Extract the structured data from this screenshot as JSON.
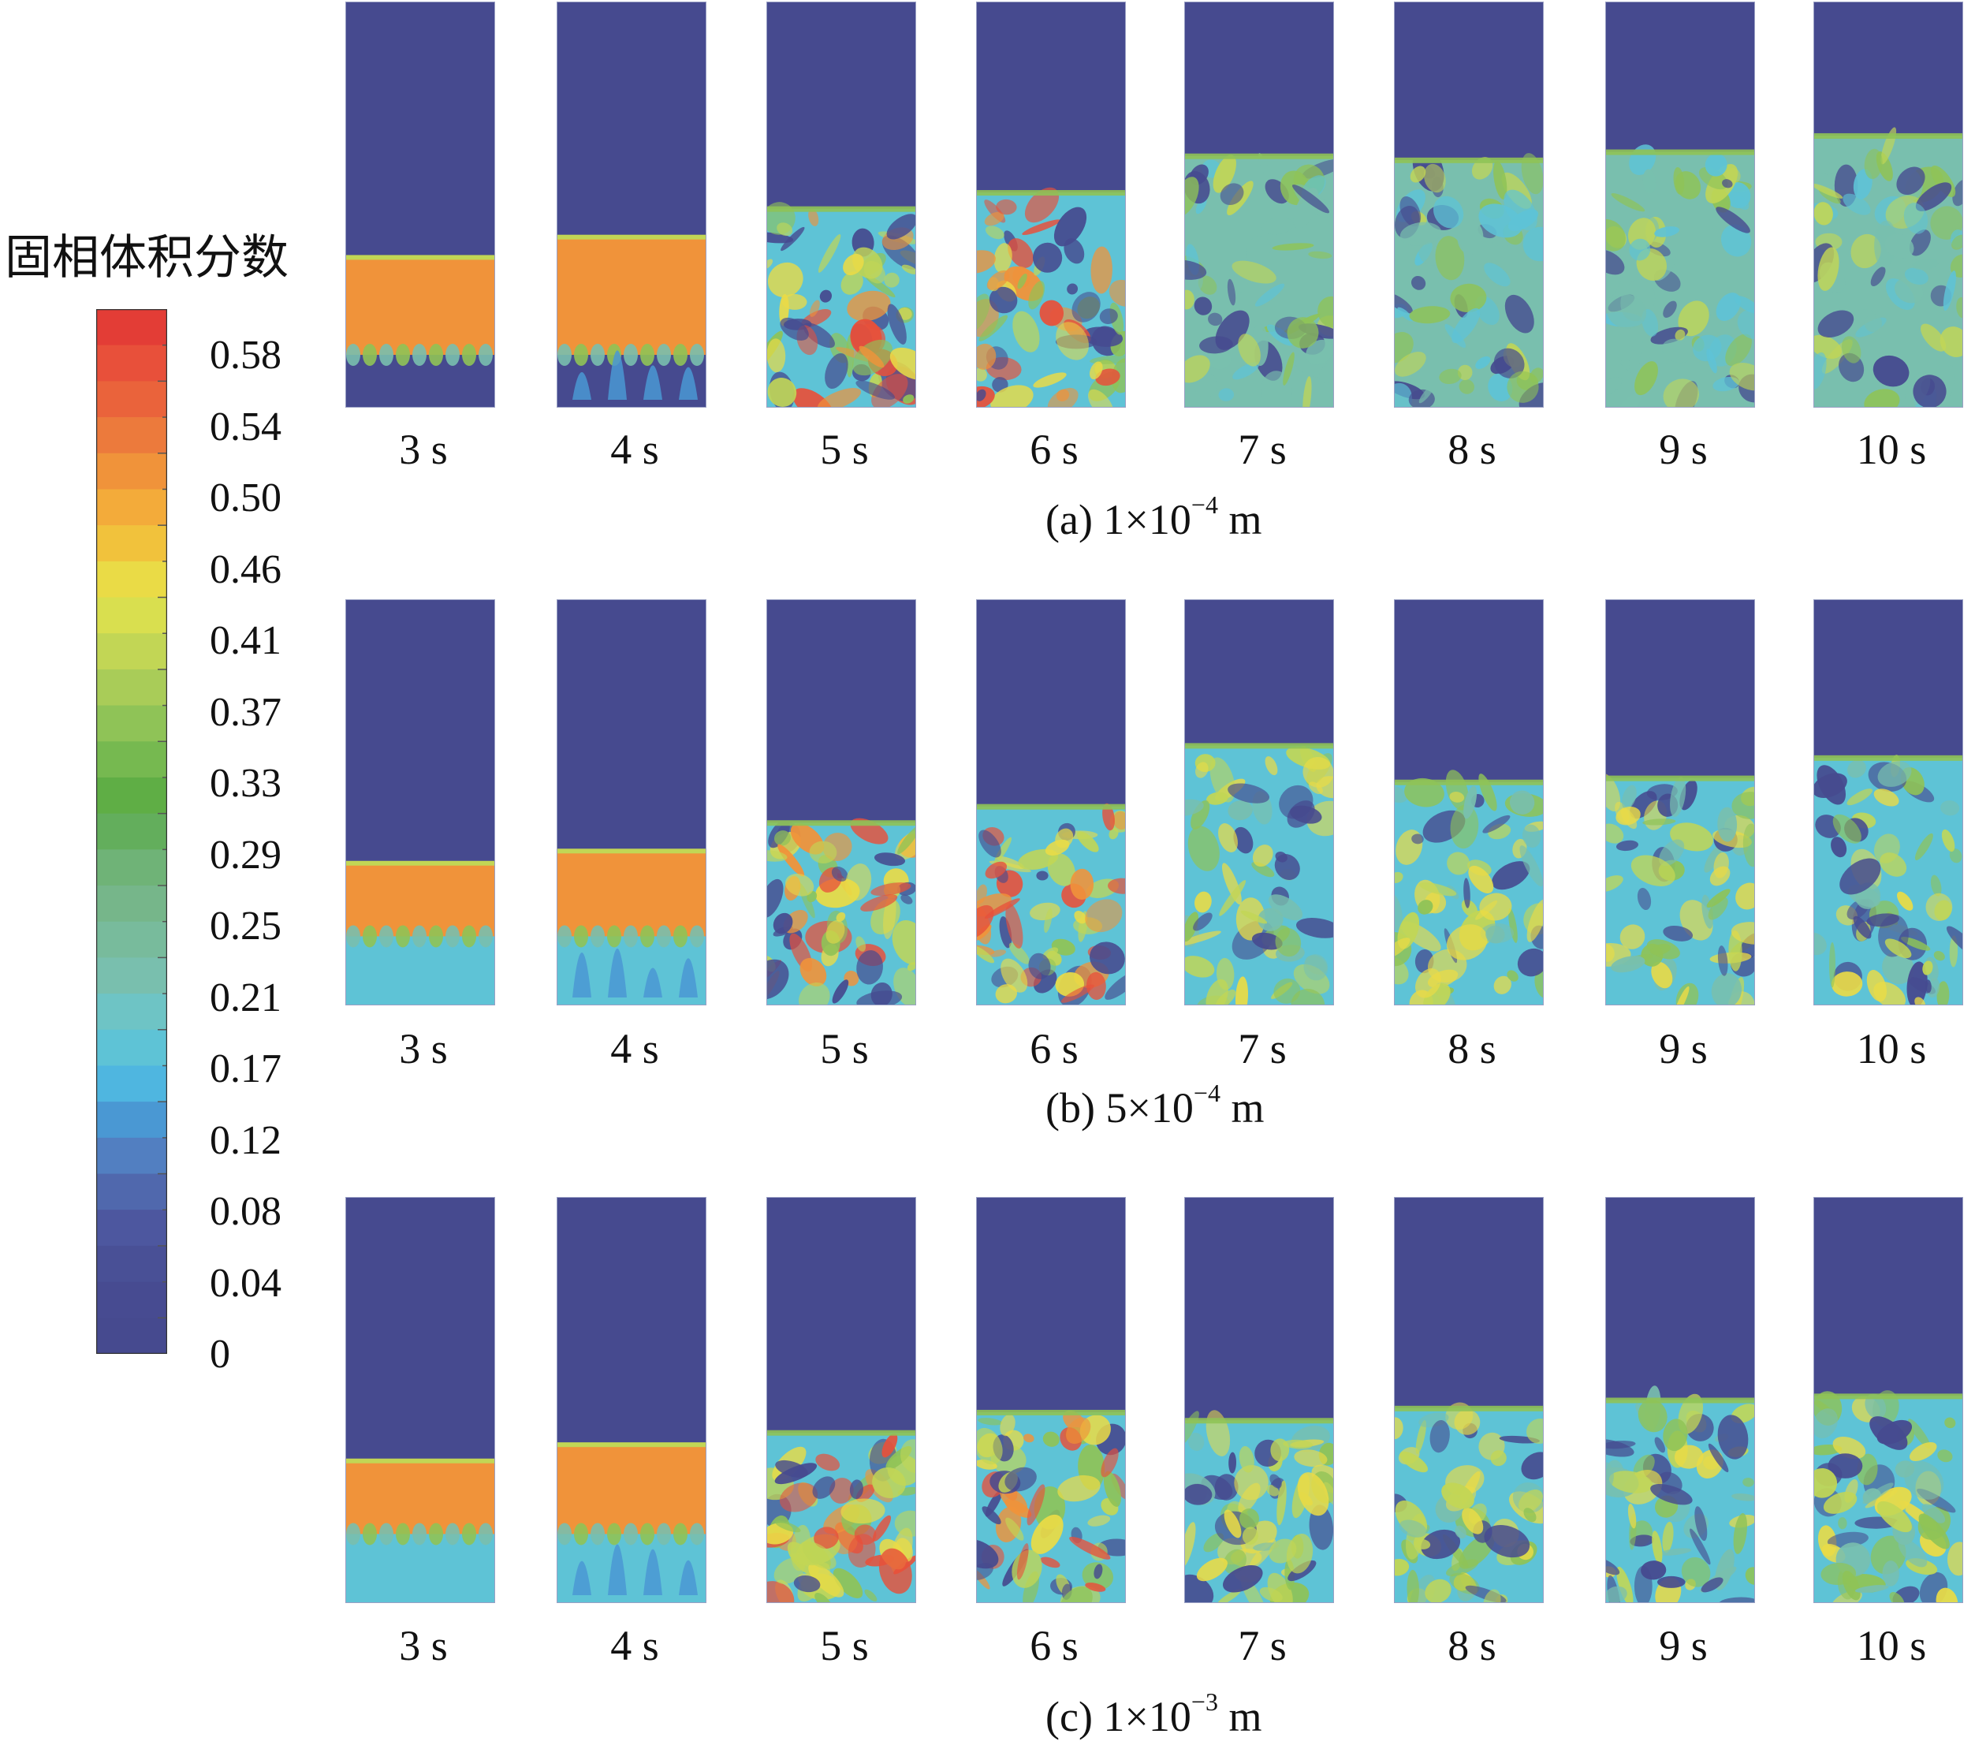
{
  "legend": {
    "title": "固相体积分数",
    "ticks": [
      "0.58",
      "0.54",
      "0.50",
      "0.46",
      "0.41",
      "0.37",
      "0.33",
      "0.29",
      "0.25",
      "0.21",
      "0.17",
      "0.12",
      "0.08",
      "0.04",
      "0"
    ],
    "colors": [
      "#e33d36",
      "#e8503a",
      "#ea633b",
      "#ec7a3c",
      "#f0933a",
      "#f3ab3a",
      "#f1c23c",
      "#eadb46",
      "#d9df4f",
      "#c2d655",
      "#a9cc58",
      "#8fc357",
      "#76b950",
      "#5fae45",
      "#63ae5c",
      "#6fb377",
      "#76b68a",
      "#78bb9c",
      "#79bfae",
      "#6ec4c5",
      "#5ec3d6",
      "#4fb6e0",
      "#4a98d3",
      "#527fc1",
      "#5068ad",
      "#4d579f",
      "#495096",
      "#474b91",
      "#464a8f"
    ]
  },
  "rows": [
    {
      "caption": {
        "prefix": "(a) 1×10",
        "exponent": "−4",
        "unit": " m"
      },
      "times": [
        "3 s",
        "4 s",
        "5 s",
        "6 s",
        "7 s",
        "8 s",
        "9 s",
        "10 s"
      ]
    },
    {
      "caption": {
        "prefix": "(b) 5×10",
        "exponent": "−4",
        "unit": " m"
      },
      "times": [
        "3 s",
        "4 s",
        "5 s",
        "6 s",
        "7 s",
        "8 s",
        "9 s",
        "10 s"
      ]
    },
    {
      "caption": {
        "prefix": "(c) 1×10",
        "exponent": "−3",
        "unit": " m"
      },
      "times": [
        "3 s",
        "4 s",
        "5 s",
        "6 s",
        "7 s",
        "8 s",
        "9 s",
        "10 s"
      ]
    }
  ]
}
